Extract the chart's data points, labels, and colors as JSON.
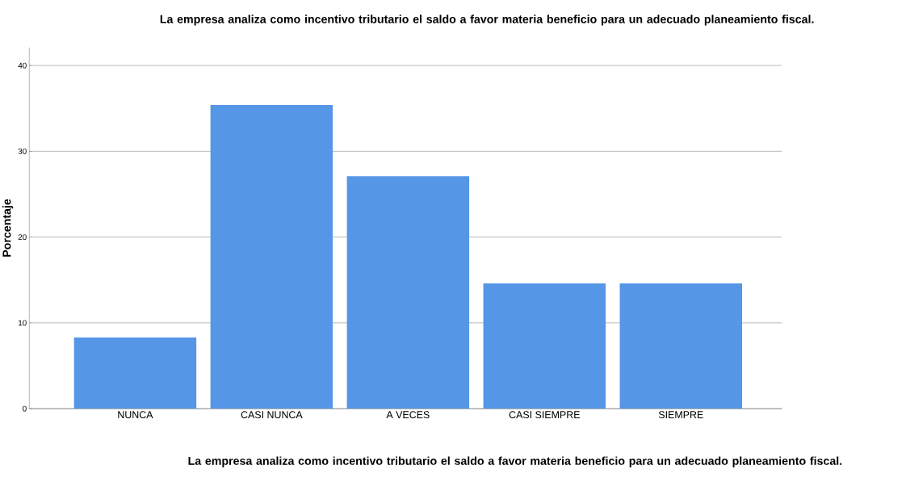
{
  "chart_data": {
    "type": "bar",
    "title": "La empresa analiza como incentivo tributario el saldo a favor materia beneficio para un adecuado planeamiento fiscal.",
    "xlabel": "La empresa analiza como incentivo tributario el saldo a favor materia beneficio para un adecuado planeamiento fiscal.",
    "ylabel": "Porcentaje",
    "categories": [
      "NUNCA",
      "CASI NUNCA",
      "A VECES",
      "CASI SIEMPRE",
      "SIEMPRE"
    ],
    "values": [
      8.3,
      35.4,
      27.1,
      14.6,
      14.6
    ],
    "color": "#5596e6",
    "ylim": [
      0,
      42.1
    ],
    "yticks": [
      0,
      10,
      20,
      30,
      40
    ],
    "grid": "y"
  }
}
